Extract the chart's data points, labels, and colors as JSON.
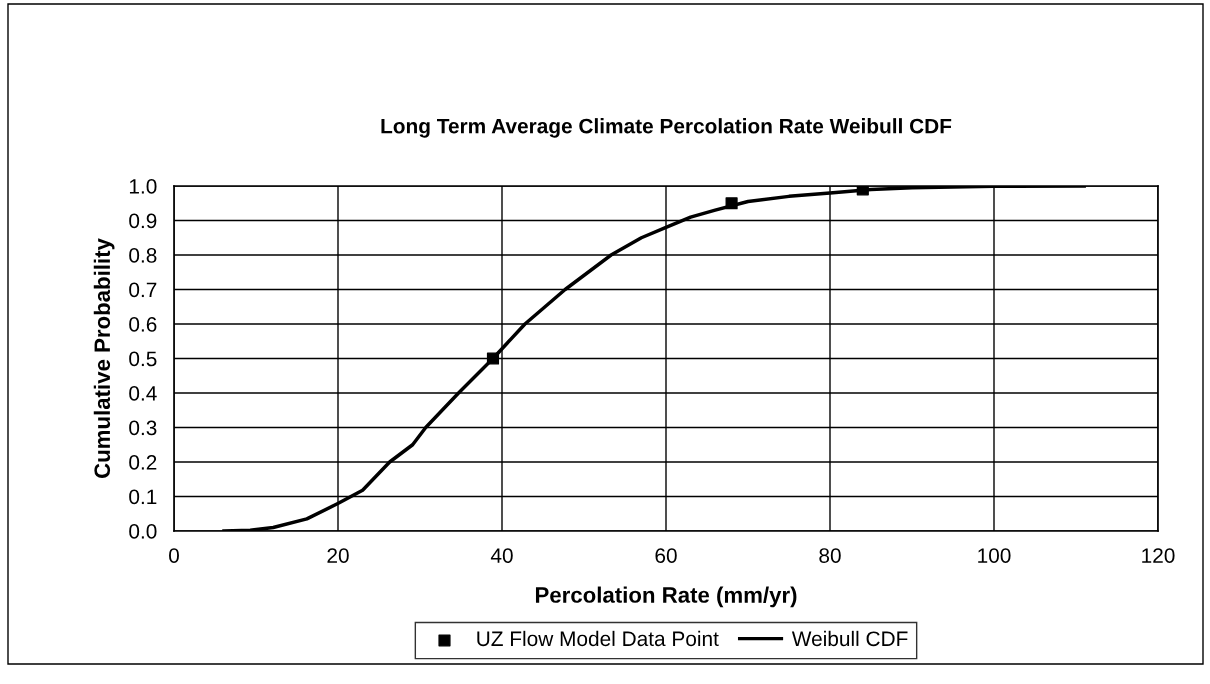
{
  "chart_data": {
    "type": "line",
    "title": "Long Term Average Climate Percolation Rate Weibull CDF",
    "xlabel": "Percolation Rate (mm/yr)",
    "ylabel": "Cumulative Probability",
    "xlim": [
      0,
      120
    ],
    "xticks": [
      0,
      20,
      40,
      60,
      80,
      100,
      120
    ],
    "ylim": [
      0,
      1
    ],
    "yticks": [
      {
        "value": 0,
        "label": "0.0"
      },
      {
        "value": 0.1,
        "label": "0.1"
      },
      {
        "value": 0.2,
        "label": "0.2"
      },
      {
        "value": 0.3,
        "label": "0.3"
      },
      {
        "value": 0.4,
        "label": "0.4"
      },
      {
        "value": 0.5,
        "label": "0.5"
      },
      {
        "value": 0.6,
        "label": "0.6"
      },
      {
        "value": 0.7,
        "label": "0.7"
      },
      {
        "value": 0.8,
        "label": "0.8"
      },
      {
        "value": 0.9,
        "label": "0.9"
      },
      {
        "value": 1.0,
        "label": "1.0"
      }
    ],
    "grid": true,
    "legend": "bottom",
    "series": [
      {
        "name": "UZ Flow Model Data Point",
        "type": "scatter",
        "marker": "square",
        "color": "#000000",
        "x": [
          38.9,
          68,
          84
        ],
        "values": [
          0.5,
          0.95,
          0.99
        ]
      },
      {
        "name": "Weibull CDF",
        "marker": "none",
        "line_style": "solid",
        "color": "#000000",
        "x": [
          6.1,
          9.3,
          12.1,
          16.2,
          20.1,
          23.0,
          26.3,
          29.1,
          30.7,
          34.7,
          38.9,
          42.8,
          47.7,
          53.3,
          57,
          60,
          63,
          66,
          70,
          75,
          80,
          85,
          90,
          100,
          111
        ],
        "values": [
          0,
          0.002,
          0.01,
          0.035,
          0.081,
          0.118,
          0.2,
          0.25,
          0.3,
          0.4,
          0.5,
          0.6,
          0.7,
          0.8,
          0.85,
          0.88,
          0.91,
          0.93,
          0.955,
          0.97,
          0.98,
          0.99,
          0.995,
          0.999,
          1.0
        ]
      }
    ]
  }
}
